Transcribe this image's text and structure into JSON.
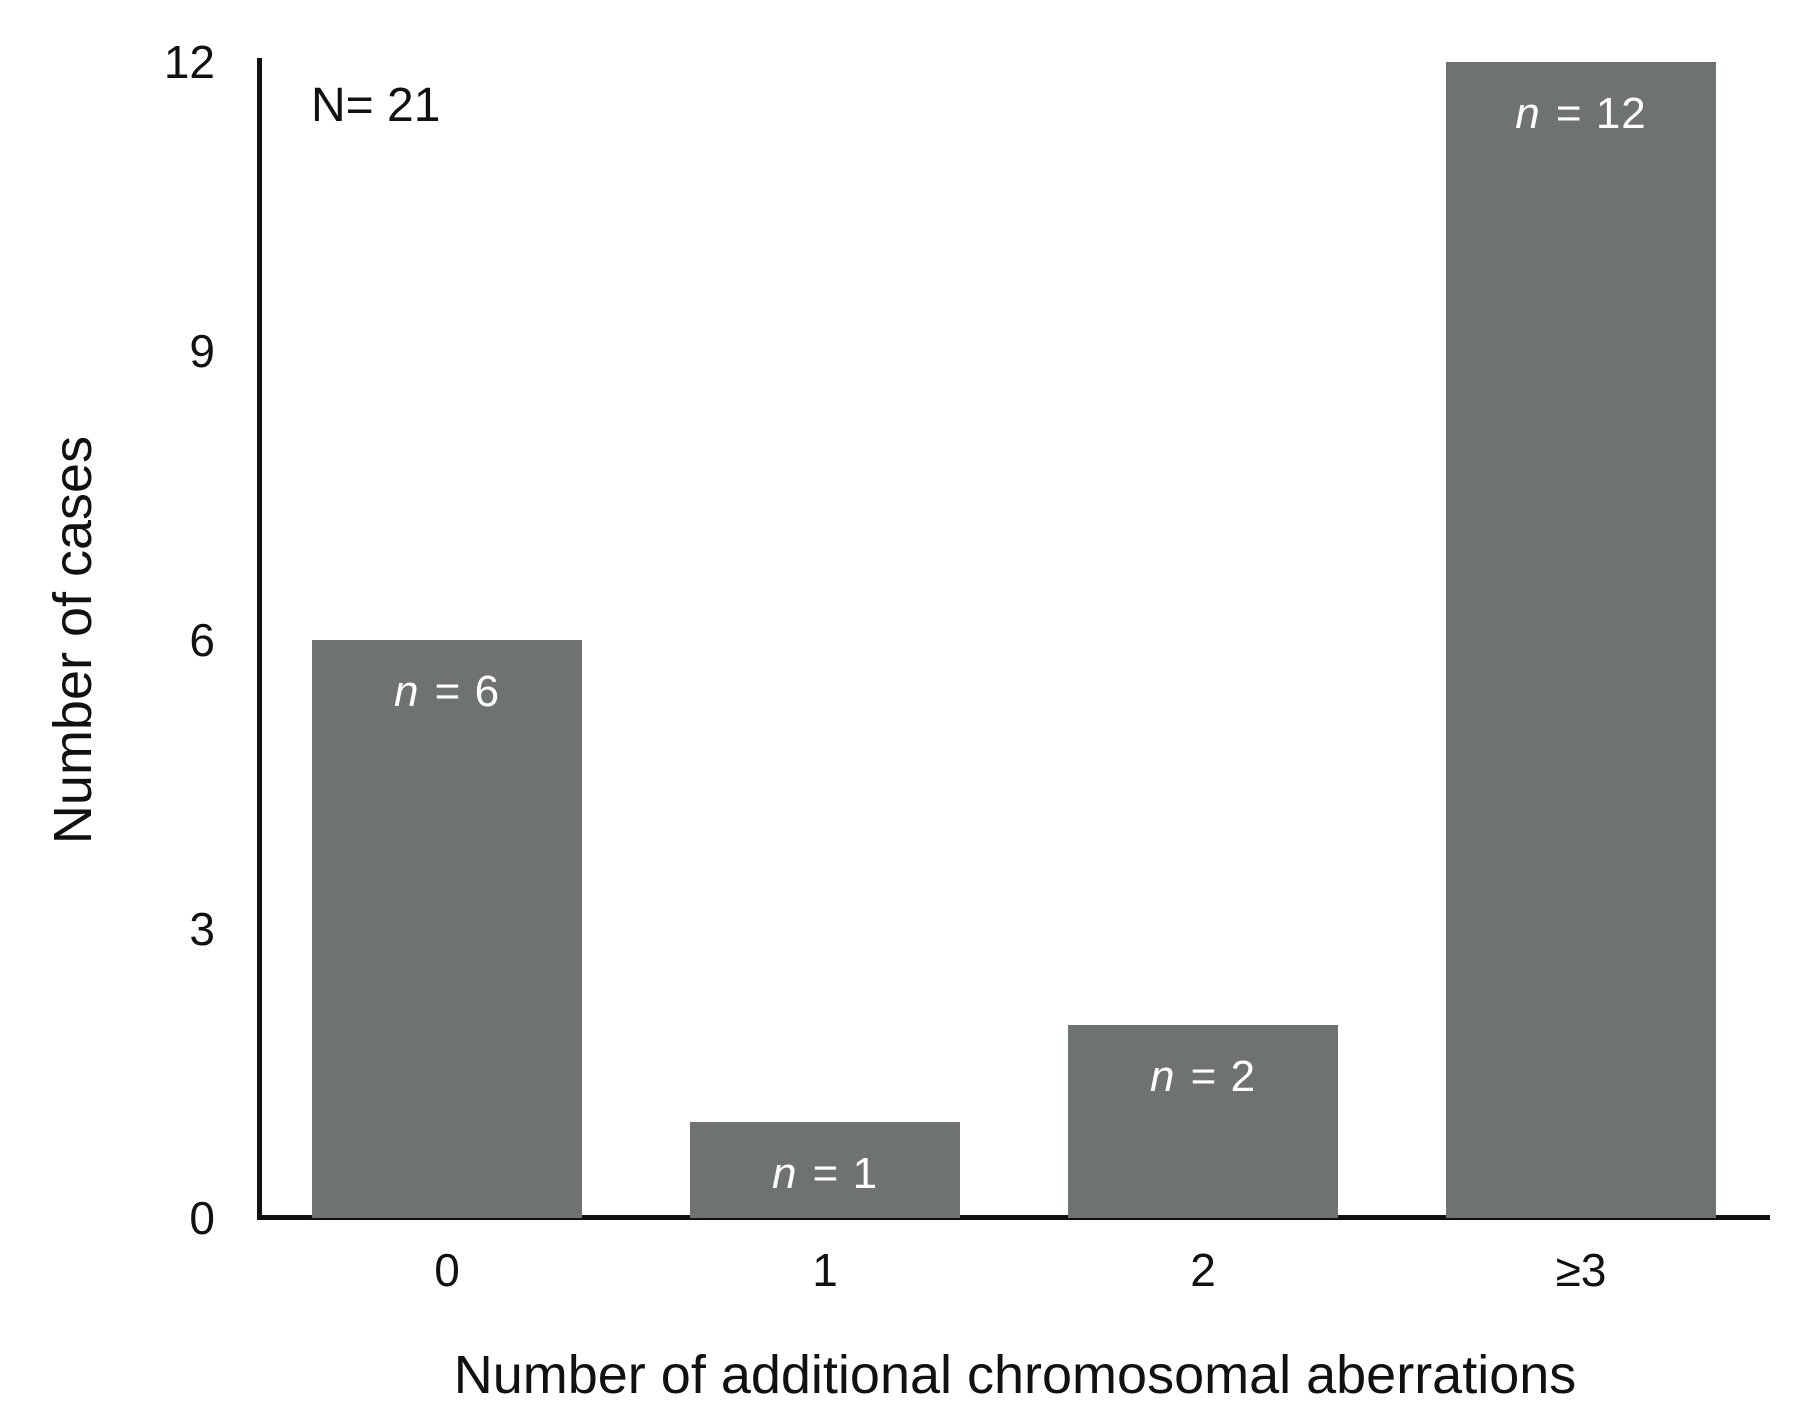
{
  "figure": {
    "annotation": "N= 21",
    "y_axis_title": "Number of cases",
    "x_axis_title": "Number of additional chromosomal aberrations"
  },
  "chart_data": {
    "type": "bar",
    "title": "",
    "categories": [
      "0",
      "1",
      "2",
      "≥3"
    ],
    "values": [
      6,
      1,
      2,
      12
    ],
    "bar_labels": [
      "n = 6",
      "n = 1",
      "n = 2",
      "n = 12"
    ],
    "total_annotation": "N= 21",
    "xlabel": "Number of additional chromosomal aberrations",
    "ylabel": "Number of cases",
    "yticks": [
      0,
      3,
      6,
      9,
      12
    ],
    "ylim": [
      0,
      12
    ],
    "grid": false,
    "legend": null,
    "bar_color": "#6e7370",
    "bar_label_color": "#ffffff",
    "axis_color": "#111111",
    "background_color": "#ffffff"
  }
}
